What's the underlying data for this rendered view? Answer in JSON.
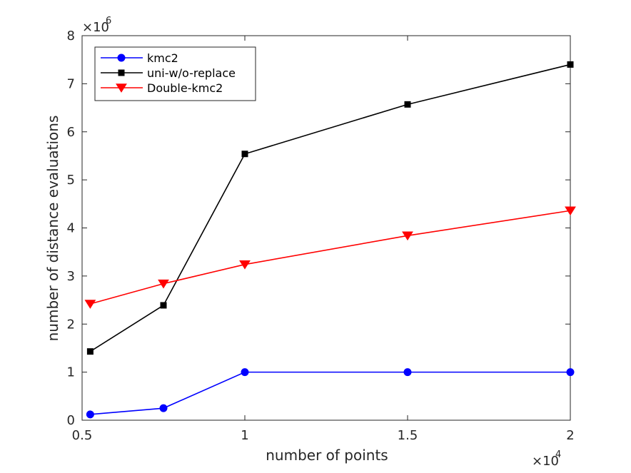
{
  "chart_data": {
    "type": "line",
    "xlabel": "number of points",
    "ylabel": "number of distance evaluations",
    "x_multiplier_label": "×10",
    "x_multiplier_exp": "4",
    "y_multiplier_label": "×10",
    "y_multiplier_exp": "6",
    "xlim": [
      0.5,
      2.0
    ],
    "ylim": [
      0,
      8
    ],
    "xticks": [
      0.5,
      1,
      1.5,
      2
    ],
    "xtick_labels": [
      "0.5",
      "1",
      "1.5",
      "2"
    ],
    "yticks": [
      0,
      1,
      2,
      3,
      4,
      5,
      6,
      7,
      8
    ],
    "ytick_labels": [
      "0",
      "1",
      "2",
      "3",
      "4",
      "5",
      "6",
      "7",
      "8"
    ],
    "x": [
      0.525,
      0.75,
      1.0,
      1.5,
      2.0
    ],
    "series": [
      {
        "name": "kmc2",
        "color": "#0000ff",
        "marker": "circle",
        "values": [
          0.12,
          0.25,
          1.0,
          1.0,
          1.0
        ]
      },
      {
        "name": "uni-w/o-replace",
        "color": "#000000",
        "marker": "square",
        "values": [
          1.43,
          2.39,
          5.54,
          6.57,
          7.4
        ]
      },
      {
        "name": "Double-kmc2",
        "color": "#ff0000",
        "marker": "triangle-down",
        "values": [
          2.42,
          2.84,
          3.24,
          3.84,
          4.36
        ]
      }
    ],
    "legend_position": "top-left",
    "grid": false,
    "box": true
  }
}
